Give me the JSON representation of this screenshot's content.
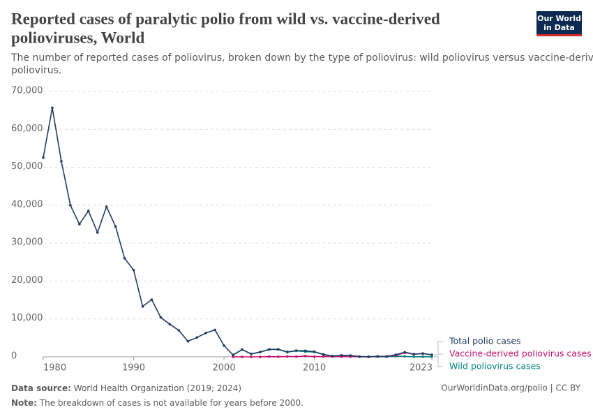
{
  "chart_data": {
    "type": "line",
    "title_lines": [
      "Reported cases of paralytic polio from wild vs. vaccine-derived",
      "polioviruses, World"
    ],
    "subtitle_lines": [
      "The number of reported cases of poliovirus, broken down by the type of poliovirus: wild poliovirus versus vaccine-derived",
      "poliovirus."
    ],
    "logo_lines": [
      "Our World",
      "in Data"
    ],
    "source_label": "Data source:",
    "source": "World Health Organization (2019; 2024)",
    "url": "OurWorldinData.org/polio | CC BY",
    "note_label": "Note:",
    "note": "The breakdown of cases is not available for years before 2000.",
    "x": [
      1980,
      1981,
      1982,
      1983,
      1984,
      1985,
      1986,
      1987,
      1988,
      1989,
      1990,
      1991,
      1992,
      1993,
      1994,
      1995,
      1996,
      1997,
      1998,
      1999,
      2000,
      2001,
      2002,
      2003,
      2004,
      2005,
      2006,
      2007,
      2008,
      2009,
      2010,
      2011,
      2012,
      2013,
      2014,
      2015,
      2016,
      2017,
      2018,
      2019,
      2020,
      2021,
      2022,
      2023
    ],
    "series": [
      {
        "name": "Total polio cases",
        "color": "#1d3d63",
        "values": [
          52552,
          65700,
          51600,
          40000,
          35000,
          38500,
          32800,
          39600,
          34400,
          26000,
          22900,
          13300,
          15100,
          10400,
          8600,
          7000,
          4100,
          5100,
          6300,
          7100,
          2971,
          498,
          1922,
          784,
          1258,
          1979,
          1997,
          1315,
          1651,
          1604,
          1352,
          650,
          223,
          416,
          359,
          74,
          37,
          118,
          138,
          554,
          1221,
          703,
          882,
          536
        ]
      },
      {
        "name": "Vaccine-derived poliovirus cases",
        "color": "#c8106e",
        "values": [
          null,
          null,
          null,
          null,
          null,
          null,
          null,
          null,
          null,
          null,
          null,
          null,
          null,
          null,
          null,
          null,
          null,
          null,
          null,
          null,
          null,
          12,
          0,
          2,
          2,
          65,
          36,
          78,
          68,
          227,
          68,
          70,
          71,
          62,
          56,
          32,
          5,
          96,
          105,
          378,
          1081,
          697,
          852,
          524
        ]
      },
      {
        "name": "Wild poliovirus cases",
        "color": "#00847e",
        "values": [
          null,
          null,
          null,
          null,
          null,
          null,
          null,
          null,
          null,
          null,
          null,
          null,
          null,
          null,
          null,
          null,
          null,
          null,
          null,
          null,
          null,
          486,
          1922,
          782,
          1256,
          1914,
          1961,
          1237,
          1583,
          1377,
          1284,
          580,
          152,
          354,
          303,
          42,
          32,
          22,
          33,
          176,
          140,
          6,
          30,
          12
        ]
      }
    ],
    "xlim": [
      1980,
      2023
    ],
    "xticks": [
      1980,
      1990,
      2000,
      2010,
      2023
    ],
    "ylim": [
      0,
      70000
    ],
    "yticks": [
      0,
      {
        "value": 10000,
        "label": "10,000"
      },
      {
        "value": 20000,
        "label": "20,000"
      },
      {
        "value": 30000,
        "label": "30,000"
      },
      {
        "value": 40000,
        "label": "40,000"
      },
      {
        "value": 50000,
        "label": "50,000"
      },
      {
        "value": 60000,
        "label": "60,000"
      },
      {
        "value": 70000,
        "label": "70,000"
      }
    ],
    "grid": true
  }
}
